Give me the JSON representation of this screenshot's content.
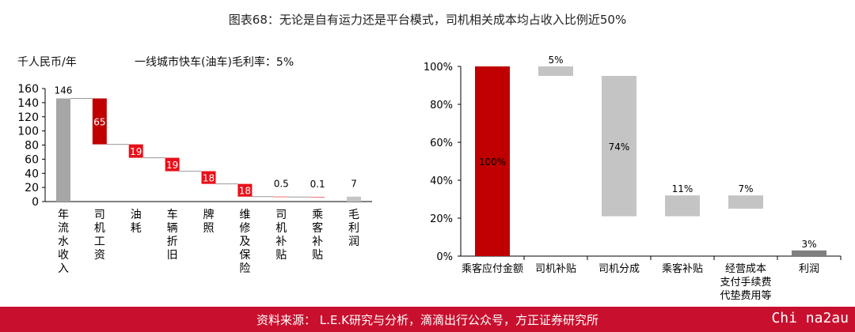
{
  "title": "图表68：无论是自有运力还是平台模式，司机相关成本均占收入比例近50%",
  "footer": {
    "source": "资料来源： L.E.K研究与分析，滴滴出行公众号，方正证券研究所",
    "watermark": "Chi na2au"
  },
  "colors": {
    "red": "#c00000",
    "bright_red": "#e8101a",
    "gray": "#a6a6a6",
    "light_gray": "#c4c4c4",
    "dark_gray": "#7f7f7f",
    "footer": "#c8102e"
  },
  "chart_data": [
    {
      "type": "bar",
      "subtype": "waterfall",
      "unit_label": "千人民币/年",
      "note": "一线城市快车(油车)毛利率：5%",
      "categories": [
        "年流水收入",
        "司机工资",
        "油耗",
        "车辆折旧",
        "牌照",
        "维修及保险",
        "司机补贴",
        "乘客补贴",
        "毛利润"
      ],
      "values": [
        146,
        65,
        19,
        19,
        18,
        18,
        0.5,
        0.1,
        7
      ],
      "value_labels": [
        "146",
        "65",
        "19",
        "19",
        "18",
        "18",
        "0.5",
        "0.1",
        "7"
      ],
      "ylim": [
        0,
        160
      ],
      "yticks": [
        0,
        20,
        40,
        60,
        80,
        100,
        120,
        140,
        160
      ]
    },
    {
      "type": "bar",
      "subtype": "waterfall",
      "categories": [
        "乘客应付金额",
        "司机补贴",
        "司机分成",
        "乘客补贴",
        "经营成本\n支付手续费\n代垫费用等",
        "利润"
      ],
      "values": [
        100,
        5,
        74,
        11,
        7,
        3
      ],
      "value_labels": [
        "100%",
        "5%",
        "74%",
        "11%",
        "7%",
        "3%"
      ],
      "ylim": [
        0,
        100
      ],
      "yticks": [
        "0%",
        "20%",
        "40%",
        "60%",
        "80%",
        "100%"
      ]
    }
  ]
}
